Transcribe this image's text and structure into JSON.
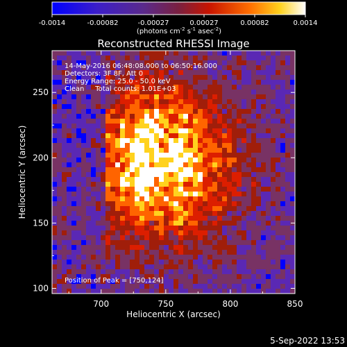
{
  "chart_data": {
    "type": "heatmap",
    "title": "Reconstructed RHESSI Image",
    "xlabel": "Heliocentric X (arcsec)",
    "ylabel": "Heliocentric Y (arcsec)",
    "xlim": [
      662,
      850
    ],
    "ylim": [
      96,
      282
    ],
    "xticks": [
      "700",
      "750",
      "800",
      "850"
    ],
    "yticks": [
      "100",
      "150",
      "200",
      "250"
    ],
    "colorbar": {
      "range": [
        -0.0014,
        0.0014
      ],
      "ticks": [
        "-0.0014",
        "-0.00082",
        "-0.00027",
        "0.00027",
        "0.00082",
        "0.0014"
      ],
      "label_main": "(photons cm",
      "label_exp1": "-2",
      "label_mid": " s",
      "label_exp2": "-1",
      "label_end": " asec",
      "label_exp3": "-2",
      "label_close": ")"
    },
    "annotations": [
      "14-May-2016 06:48:08.000 to 06:50:16.000",
      "Detectors: 3F 8F, Att 0",
      "Energy Range: 25.0 - 50.0 keV",
      "Clean     Total counts: 1.01E+03"
    ],
    "peak_label": "Position of Peak = [750,124]",
    "peak_position": [
      750,
      124
    ]
  },
  "timestamp": "5-Sep-2022 13:53",
  "colors": {
    "background": "#000000",
    "foreground": "#ffffff",
    "colormap": [
      "#0000ff",
      "#5a28b4",
      "#783264",
      "#a01e0a",
      "#dc1e00",
      "#ff6400",
      "#ffd21e",
      "#ffffff"
    ]
  }
}
